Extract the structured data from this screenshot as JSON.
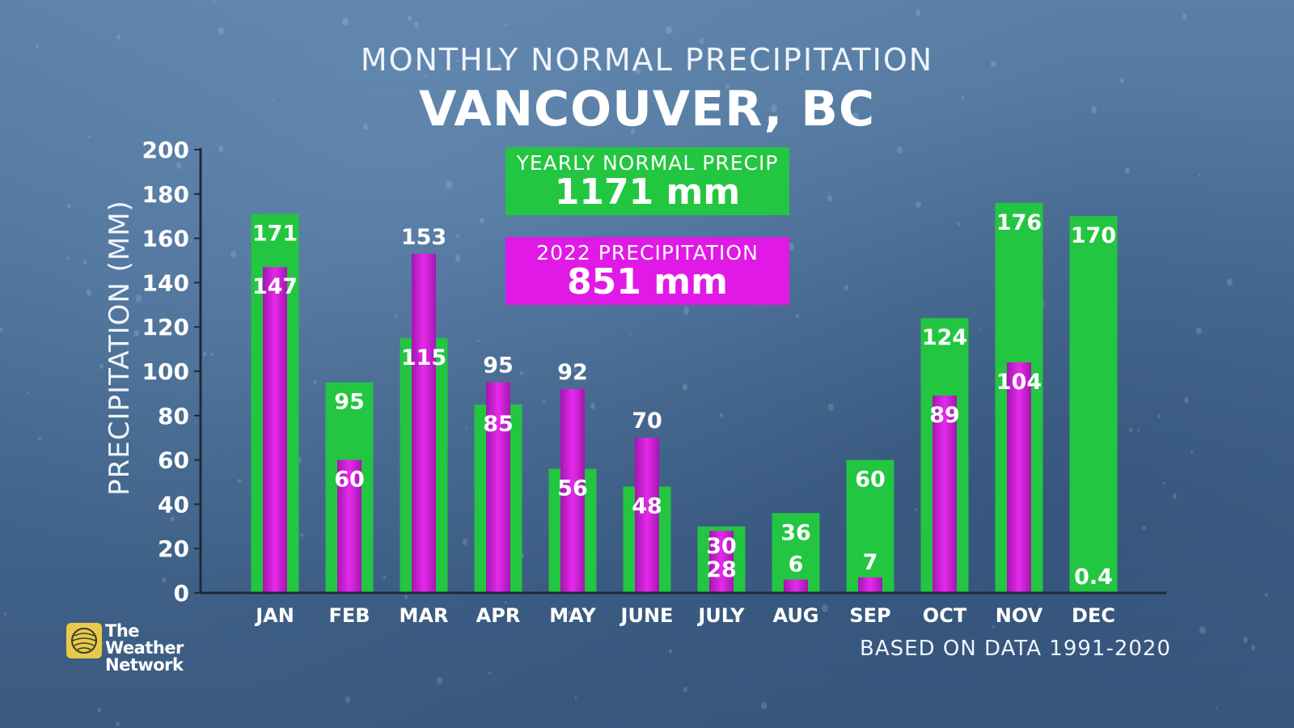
{
  "header": {
    "subtitle": "MONTHLY NORMAL PRECIPITATION",
    "title": "VANCOUVER, BC"
  },
  "summary": {
    "yearly_label": "YEARLY NORMAL PRECIP",
    "yearly_value": "1171 mm",
    "year_label": "2022 PRECIPITATION",
    "year_value": "851 mm"
  },
  "footnote": "BASED ON DATA 1991-2020",
  "logo": {
    "line1": "The Weather",
    "line2": "Network",
    "icon": "weather-network-globe-icon"
  },
  "colors": {
    "normal": "#22c640",
    "year2022": "#d81ee0",
    "axis": "#1e2a38"
  },
  "chart_data": {
    "type": "bar",
    "ylabel": "PRECIPITATION (MM)",
    "xlabel": "",
    "ylim": [
      0,
      200
    ],
    "yticks": [
      0,
      20,
      40,
      60,
      80,
      100,
      120,
      140,
      160,
      180,
      200
    ],
    "categories": [
      "JAN",
      "FEB",
      "MAR",
      "APR",
      "MAY",
      "JUNE",
      "JULY",
      "AUG",
      "SEP",
      "OCT",
      "NOV",
      "DEC"
    ],
    "series": [
      {
        "values": [
          171,
          95,
          115,
          85,
          56,
          48,
          30,
          36,
          60,
          124,
          176,
          170
        ],
        "labels": [
          "171",
          "95",
          "115",
          "85",
          "56",
          "48",
          "30",
          "36",
          "60",
          "124",
          "176",
          "170"
        ]
      },
      {
        "values": [
          147,
          60,
          153,
          95,
          92,
          70,
          28,
          6,
          7,
          89,
          104,
          0.4
        ],
        "labels": [
          "147",
          "60",
          "153",
          "95",
          "92",
          "70",
          "28",
          "6",
          "7",
          "89",
          "104",
          "0.4"
        ]
      }
    ]
  }
}
